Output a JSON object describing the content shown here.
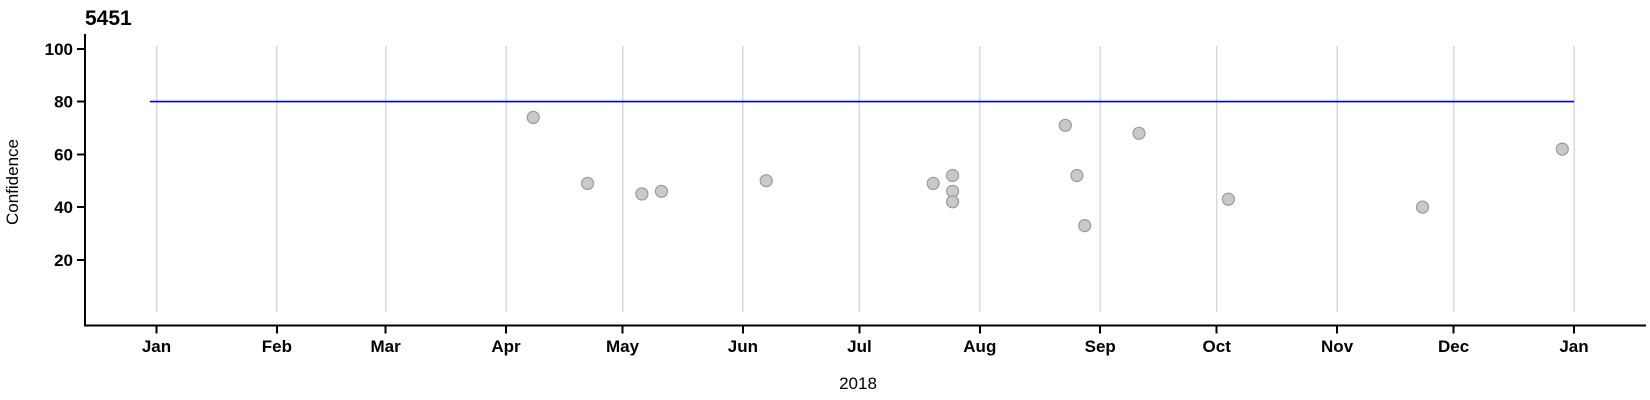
{
  "chart_data": {
    "type": "scatter",
    "title": "5451",
    "xlabel": "2018",
    "ylabel": "Confidence",
    "x_tick_labels": [
      "Jan",
      "Feb",
      "Mar",
      "Apr",
      "May",
      "Jun",
      "Jul",
      "Aug",
      "Sep",
      "Oct",
      "Nov",
      "Dec",
      "Jan"
    ],
    "y_ticks": [
      20,
      40,
      60,
      80,
      100
    ],
    "ylim": [
      0,
      101
    ],
    "x_range": [
      "2018-01-01",
      "2019-01-01"
    ],
    "grid": "vertical-month-gridlines-only",
    "legend": "none",
    "reference_line": {
      "y": 80,
      "color": "#0000dd"
    },
    "points": [
      {
        "date": "2018-04-08",
        "value": 74
      },
      {
        "date": "2018-04-22",
        "value": 49
      },
      {
        "date": "2018-05-06",
        "value": 45
      },
      {
        "date": "2018-05-11",
        "value": 46
      },
      {
        "date": "2018-06-07",
        "value": 50
      },
      {
        "date": "2018-07-20",
        "value": 49
      },
      {
        "date": "2018-07-25",
        "value": 52
      },
      {
        "date": "2018-07-25",
        "value": 46
      },
      {
        "date": "2018-07-25",
        "value": 42
      },
      {
        "date": "2018-08-23",
        "value": 71
      },
      {
        "date": "2018-08-26",
        "value": 52
      },
      {
        "date": "2018-08-28",
        "value": 33
      },
      {
        "date": "2018-09-11",
        "value": 68
      },
      {
        "date": "2018-10-04",
        "value": 43
      },
      {
        "date": "2018-11-23",
        "value": 40
      },
      {
        "date": "2018-12-29",
        "value": 62
      }
    ],
    "colors": {
      "point_fill": "#c9c9c9",
      "point_border": "#9a9a9a",
      "gridline": "#d9d9d9",
      "axis": "#000000",
      "background": "#ffffff"
    }
  }
}
